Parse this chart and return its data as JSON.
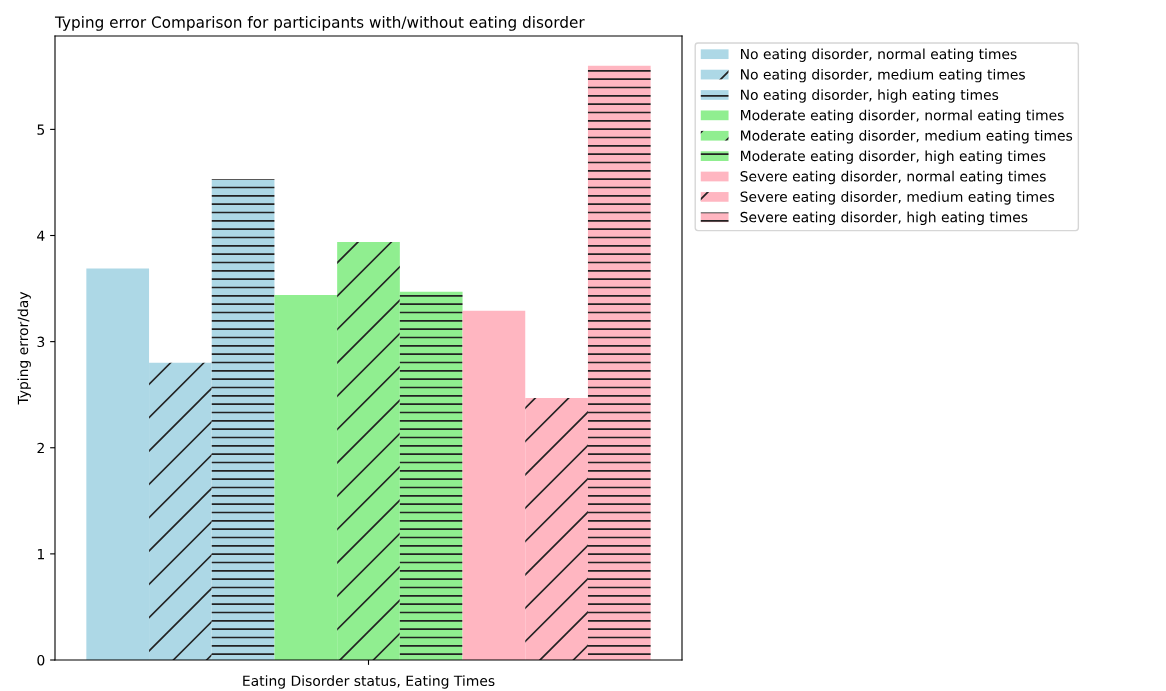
{
  "chart_data": {
    "type": "bar",
    "title": "Typing error Comparison for participants with/without eating disorder",
    "xlabel": "Eating Disorder status, Eating Times",
    "ylabel": "Typing error/day",
    "categories": [
      null
    ],
    "series": [
      {
        "name": "No eating disorder, normal eating times",
        "color": "#add8e6",
        "values": [
          3.69
        ]
      },
      {
        "name": "No eating disorder, medium eating times",
        "color": "#add8e6",
        "values": [
          2.8
        ]
      },
      {
        "name": "No eating disorder, high eating times",
        "color": "#add8e6",
        "values": [
          4.53
        ]
      },
      {
        "name": "Moderate eating disorder, normal eating times",
        "color": "#90ee90",
        "values": [
          3.44
        ]
      },
      {
        "name": "Moderate eating disorder, medium eating times",
        "color": "#90ee90",
        "values": [
          3.94
        ]
      },
      {
        "name": "Moderate eating disorder, high eating times",
        "color": "#90ee90",
        "values": [
          3.47
        ]
      },
      {
        "name": "Severe eating disorder, normal eating times",
        "color": "#ffb6c1",
        "values": [
          3.29
        ]
      },
      {
        "name": "Severe eating disorder, medium eating times",
        "color": "#ffb6c1",
        "values": [
          2.47
        ]
      },
      {
        "name": "Severe eating disorder, high eating times",
        "color": "#ffb6c1",
        "values": [
          5.6
        ]
      }
    ],
    "ylim": [
      0,
      5.88
    ],
    "yticks": [
      0,
      1,
      2,
      3,
      4,
      5
    ],
    "grid": false,
    "legend": "right"
  }
}
